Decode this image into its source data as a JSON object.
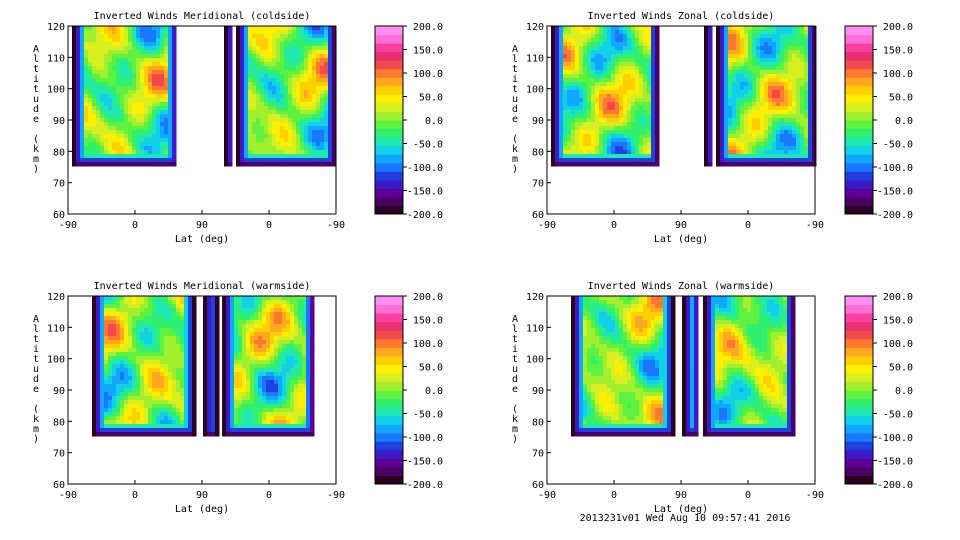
{
  "footer": "2013231v01 Wed Aug 10 09:57:41 2016",
  "colorbar": {
    "ticks": [
      "200.0",
      "150.0",
      "100.0",
      "50.0",
      "0.0",
      "-50.0",
      "-100.0",
      "-150.0",
      "-200.0"
    ],
    "colors": [
      "#2a0020",
      "#4b0064",
      "#5c0097",
      "#3c1ac8",
      "#2040e0",
      "#1a78ff",
      "#10a8ff",
      "#12d0e8",
      "#20e8b0",
      "#30f070",
      "#60f040",
      "#a0f030",
      "#d8f020",
      "#fff000",
      "#ffd000",
      "#ffa820",
      "#ff7830",
      "#f04a4a",
      "#e83070",
      "#ff40a0",
      "#ff70d8",
      "#ff90f0"
    ]
  },
  "chart_data": [
    {
      "type": "heatmap",
      "title": "Inverted Winds Meridional (coldside)",
      "xlabel": "Lat (deg)",
      "ylabel": "Altitude (km)",
      "xticks": [
        "-90",
        "0",
        "90",
        "0",
        "-90"
      ],
      "yticks": [
        "120",
        "110",
        "100",
        "90",
        "80",
        "70",
        "60"
      ],
      "ylim": [
        60,
        120
      ],
      "color_range": [
        -200,
        200
      ]
    },
    {
      "type": "heatmap",
      "title": "Inverted Winds Zonal (coldside)",
      "xlabel": "Lat (deg)",
      "ylabel": "Altitude (km)",
      "xticks": [
        "-90",
        "0",
        "90",
        "0",
        "-90"
      ],
      "yticks": [
        "120",
        "110",
        "100",
        "90",
        "80",
        "70",
        "60"
      ],
      "ylim": [
        60,
        120
      ],
      "color_range": [
        -200,
        200
      ]
    },
    {
      "type": "heatmap",
      "title": "Inverted Winds Meridional (warmside)",
      "xlabel": "Lat (deg)",
      "ylabel": "Altitude (km)",
      "xticks": [
        "-90",
        "0",
        "90",
        "0",
        "-90"
      ],
      "yticks": [
        "120",
        "110",
        "100",
        "90",
        "80",
        "70",
        "60"
      ],
      "ylim": [
        60,
        120
      ],
      "color_range": [
        -200,
        200
      ]
    },
    {
      "type": "heatmap",
      "title": "Inverted Winds Zonal (warmside)",
      "xlabel": "Lat (deg)",
      "ylabel": "Altitude (km)",
      "xticks": [
        "-90",
        "0",
        "90",
        "0",
        "-90"
      ],
      "yticks": [
        "120",
        "110",
        "100",
        "90",
        "80",
        "70",
        "60"
      ],
      "ylim": [
        60,
        120
      ],
      "color_range": [
        -200,
        200
      ]
    }
  ]
}
